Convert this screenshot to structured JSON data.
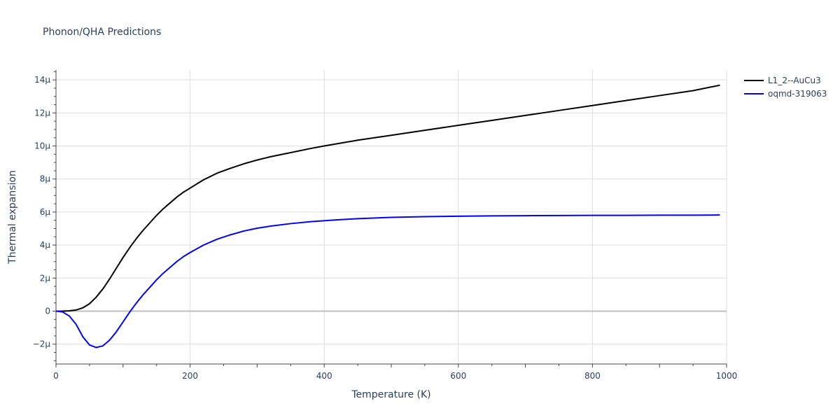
{
  "chart_data": {
    "type": "line",
    "title": "Phonon/QHA Predictions",
    "xlabel": "Temperature (K)",
    "ylabel": "Thermal expansion",
    "xlim": [
      0,
      1000
    ],
    "ylim": [
      -3.2,
      14.6
    ],
    "y_unit_suffix": "μ",
    "x_ticks": [
      0,
      200,
      400,
      600,
      800,
      1000
    ],
    "x_tick_labels": [
      "0",
      "200",
      "400",
      "600",
      "800",
      "1000"
    ],
    "y_ticks": [
      -2,
      0,
      2,
      4,
      6,
      8,
      10,
      12,
      14
    ],
    "y_tick_labels": [
      "−2μ",
      "0",
      "2μ",
      "4μ",
      "6μ",
      "8μ",
      "10μ",
      "12μ",
      "14μ"
    ],
    "grid": true,
    "legend_position": "top-right",
    "series": [
      {
        "name": "L1_2--AuCu3",
        "color": "#000000",
        "x": [
          0,
          10,
          20,
          30,
          40,
          50,
          60,
          70,
          80,
          90,
          100,
          110,
          120,
          130,
          140,
          150,
          160,
          170,
          180,
          190,
          200,
          220,
          240,
          260,
          280,
          300,
          320,
          350,
          380,
          400,
          450,
          500,
          550,
          600,
          650,
          700,
          750,
          800,
          850,
          900,
          950,
          990
        ],
        "y": [
          0,
          0,
          0.02,
          0.07,
          0.2,
          0.45,
          0.85,
          1.35,
          1.95,
          2.6,
          3.25,
          3.85,
          4.4,
          4.9,
          5.35,
          5.8,
          6.2,
          6.55,
          6.9,
          7.2,
          7.45,
          7.95,
          8.35,
          8.65,
          8.92,
          9.15,
          9.35,
          9.6,
          9.85,
          10.0,
          10.35,
          10.65,
          10.95,
          11.25,
          11.55,
          11.85,
          12.15,
          12.45,
          12.75,
          13.05,
          13.35,
          13.68
        ]
      },
      {
        "name": "oqmd-319063",
        "color": "#0000ff",
        "x": [
          0,
          10,
          20,
          30,
          40,
          50,
          60,
          70,
          80,
          90,
          100,
          110,
          120,
          130,
          140,
          150,
          160,
          170,
          180,
          190,
          200,
          220,
          240,
          260,
          280,
          300,
          320,
          350,
          380,
          420,
          450,
          500,
          550,
          600,
          650,
          700,
          750,
          800,
          850,
          900,
          950,
          990
        ],
        "y": [
          0,
          -0.05,
          -0.3,
          -0.8,
          -1.55,
          -2.05,
          -2.2,
          -2.1,
          -1.75,
          -1.25,
          -0.65,
          -0.05,
          0.5,
          1.0,
          1.45,
          1.9,
          2.3,
          2.65,
          3.0,
          3.3,
          3.55,
          4.0,
          4.35,
          4.62,
          4.85,
          5.02,
          5.15,
          5.3,
          5.42,
          5.53,
          5.6,
          5.68,
          5.72,
          5.75,
          5.77,
          5.78,
          5.79,
          5.8,
          5.8,
          5.81,
          5.81,
          5.82
        ]
      }
    ]
  }
}
